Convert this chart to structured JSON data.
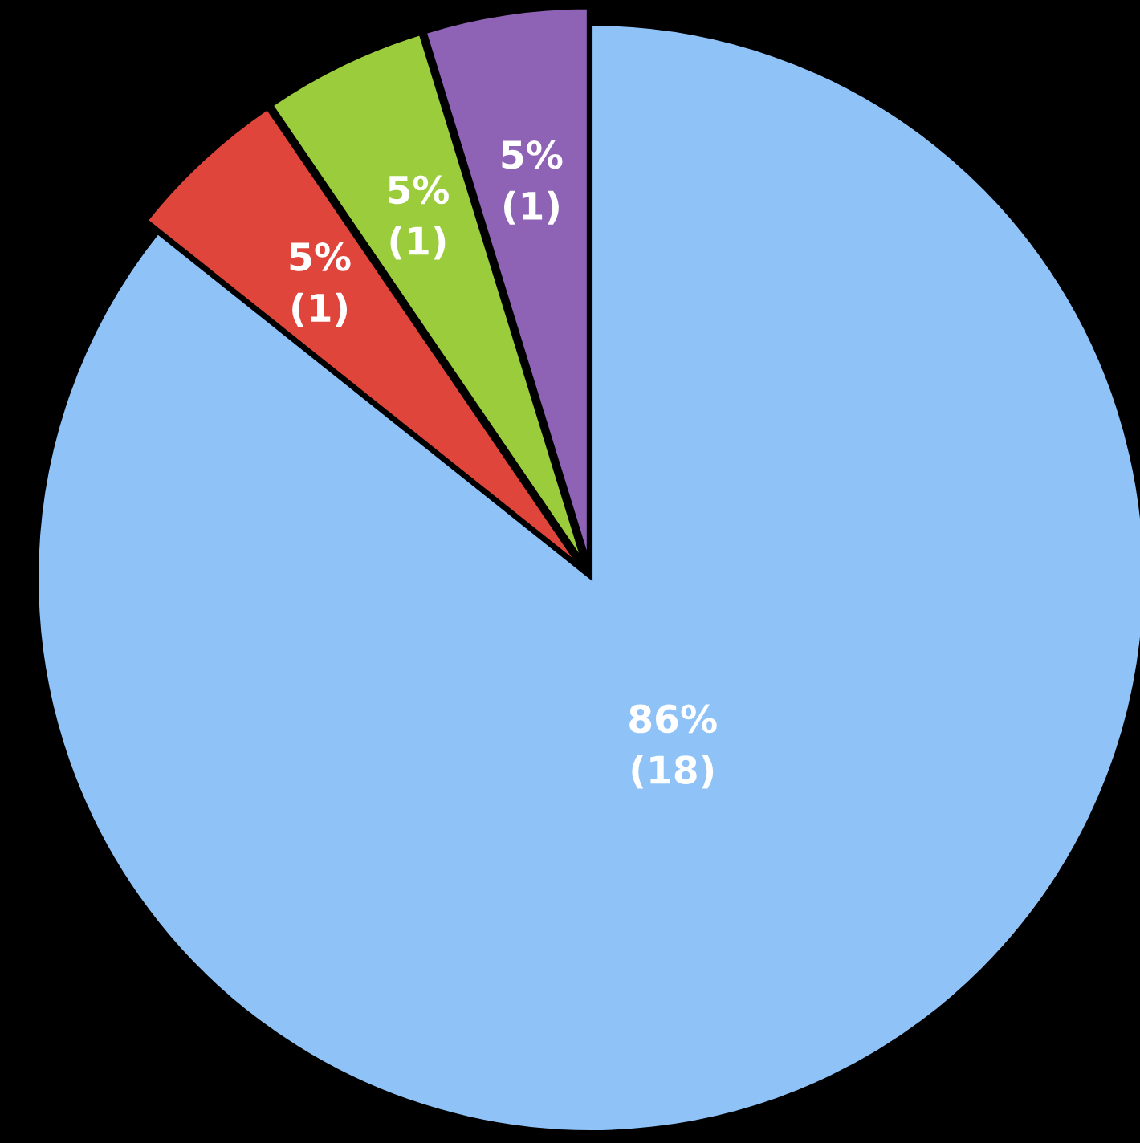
{
  "chart_data": {
    "type": "pie",
    "categories": [
      null,
      null,
      null,
      null
    ],
    "values": [
      18,
      1,
      1,
      1
    ],
    "colors": [
      "#8fc3f7",
      "#e0453c",
      "#9bcc3c",
      "#8e62b5"
    ],
    "value_labels": [
      "86%\n(18)",
      "5%\n(1)",
      "5%\n(1)",
      "5%\n(1)"
    ]
  }
}
